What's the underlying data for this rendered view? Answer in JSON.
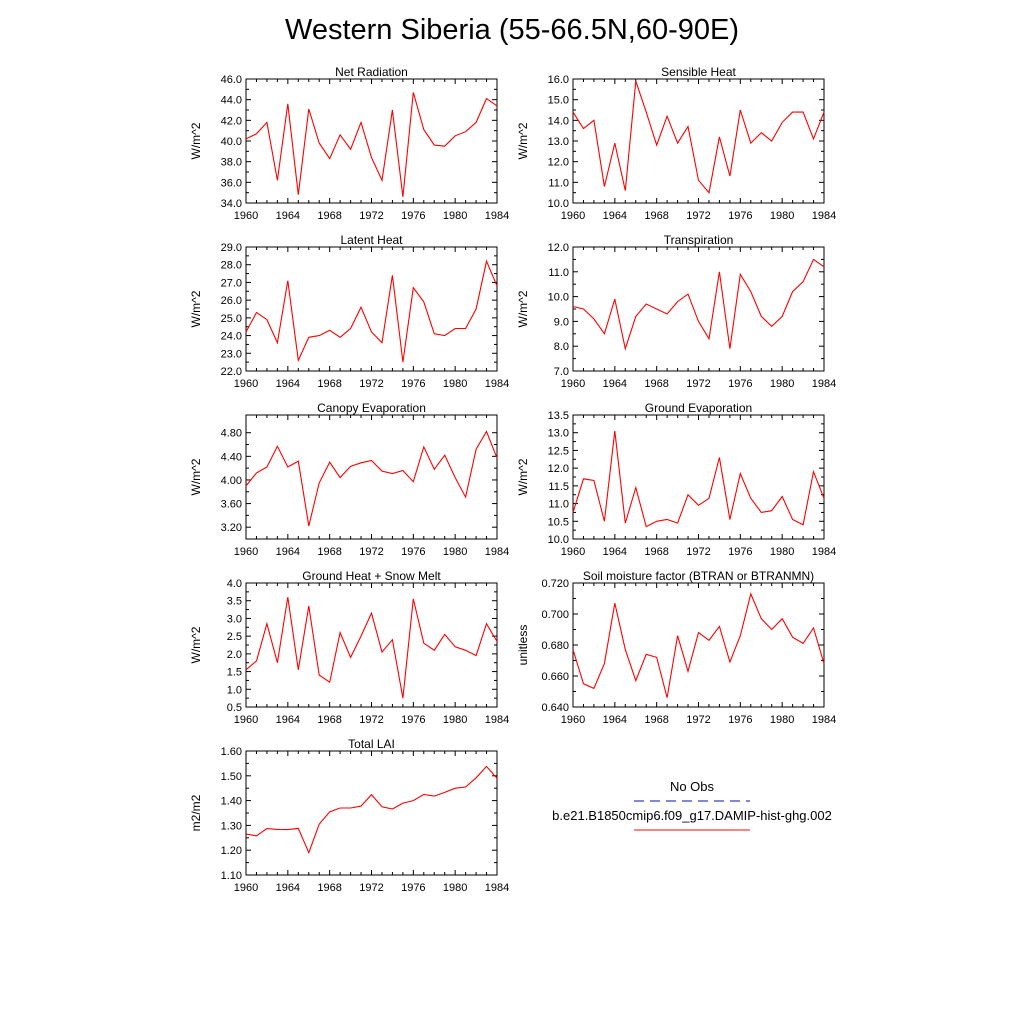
{
  "figure_title": "Western Siberia (55-66.5N,60-90E)",
  "legend": {
    "entries": [
      {
        "name": "No Obs",
        "color": "#3b3bcf",
        "dash": true
      },
      {
        "name": "b.e21.B1850cmip6.f09_g17.DAMIP-hist-ghg.002",
        "color": "#ff3b3b",
        "dash": false
      }
    ]
  },
  "chart_data": [
    {
      "type": "line",
      "title": "Net Radiation",
      "ylabel": "W/m^2",
      "x": [
        1960,
        1961,
        1962,
        1963,
        1964,
        1965,
        1966,
        1967,
        1968,
        1969,
        1970,
        1971,
        1972,
        1973,
        1974,
        1975,
        1976,
        1977,
        1978,
        1979,
        1980,
        1981,
        1982,
        1983,
        1984
      ],
      "y": [
        40.2,
        40.7,
        41.8,
        36.2,
        43.6,
        34.8,
        43.1,
        39.8,
        38.3,
        40.6,
        39.2,
        41.8,
        38.4,
        36.2,
        43.0,
        34.6,
        44.7,
        41.1,
        39.6,
        39.5,
        40.5,
        40.9,
        41.8,
        44.1,
        43.4
      ],
      "xlim": [
        1960,
        1984
      ],
      "ylim": [
        34,
        46
      ],
      "xticks": [
        "1960",
        "1964",
        "1968",
        "1972",
        "1976",
        "1980",
        "1984"
      ],
      "yticks": [
        "34.0",
        "36.0",
        "38.0",
        "40.0",
        "42.0",
        "44.0",
        "46.0"
      ],
      "color": "#ff0000"
    },
    {
      "type": "line",
      "title": "Sensible Heat",
      "ylabel": "W/m^2",
      "x": [
        1960,
        1961,
        1962,
        1963,
        1964,
        1965,
        1966,
        1967,
        1968,
        1969,
        1970,
        1971,
        1972,
        1973,
        1974,
        1975,
        1976,
        1977,
        1978,
        1979,
        1980,
        1981,
        1982,
        1983,
        1984
      ],
      "y": [
        14.4,
        13.6,
        14.0,
        10.8,
        12.9,
        10.6,
        15.9,
        14.4,
        12.8,
        14.2,
        12.9,
        13.7,
        11.1,
        10.5,
        13.2,
        11.3,
        14.5,
        12.9,
        13.4,
        13.0,
        13.9,
        14.4,
        14.4,
        13.1,
        14.4
      ],
      "xlim": [
        1960,
        1984
      ],
      "ylim": [
        10,
        16
      ],
      "xticks": [
        "1960",
        "1964",
        "1968",
        "1972",
        "1976",
        "1980",
        "1984"
      ],
      "yticks": [
        "10.0",
        "11.0",
        "12.0",
        "13.0",
        "14.0",
        "15.0",
        "16.0"
      ],
      "color": "#ff0000"
    },
    {
      "type": "line",
      "title": "Latent Heat",
      "ylabel": "W/m^2",
      "x": [
        1960,
        1961,
        1962,
        1963,
        1964,
        1965,
        1966,
        1967,
        1968,
        1969,
        1970,
        1971,
        1972,
        1973,
        1974,
        1975,
        1976,
        1977,
        1978,
        1979,
        1980,
        1981,
        1982,
        1983,
        1984
      ],
      "y": [
        24.2,
        25.3,
        24.9,
        23.6,
        27.1,
        22.6,
        23.9,
        24.0,
        24.3,
        23.9,
        24.4,
        25.6,
        24.2,
        23.6,
        27.4,
        22.5,
        26.7,
        25.9,
        24.1,
        24.0,
        24.4,
        24.4,
        25.5,
        28.2,
        26.8
      ],
      "xlim": [
        1960,
        1984
      ],
      "ylim": [
        22,
        29
      ],
      "xticks": [
        "1960",
        "1964",
        "1968",
        "1972",
        "1976",
        "1980",
        "1984"
      ],
      "yticks": [
        "22.0",
        "23.0",
        "24.0",
        "25.0",
        "26.0",
        "27.0",
        "28.0",
        "29.0"
      ],
      "color": "#ff0000"
    },
    {
      "type": "line",
      "title": "Transpiration",
      "ylabel": "W/m^2",
      "x": [
        1960,
        1961,
        1962,
        1963,
        1964,
        1965,
        1966,
        1967,
        1968,
        1969,
        1970,
        1971,
        1972,
        1973,
        1974,
        1975,
        1976,
        1977,
        1978,
        1979,
        1980,
        1981,
        1982,
        1983,
        1984
      ],
      "y": [
        9.6,
        9.5,
        9.1,
        8.5,
        9.9,
        7.9,
        9.2,
        9.7,
        9.5,
        9.3,
        9.8,
        10.1,
        9.0,
        8.3,
        11.0,
        7.9,
        10.9,
        10.2,
        9.2,
        8.8,
        9.2,
        10.2,
        10.6,
        11.5,
        11.2
      ],
      "xlim": [
        1960,
        1984
      ],
      "ylim": [
        7,
        12
      ],
      "xticks": [
        "1960",
        "1964",
        "1968",
        "1972",
        "1976",
        "1980",
        "1984"
      ],
      "yticks": [
        "7.0",
        "8.0",
        "9.0",
        "10.0",
        "11.0",
        "12.0"
      ],
      "color": "#ff0000"
    },
    {
      "type": "line",
      "title": "Canopy Evaporation",
      "ylabel": "W/m^2",
      "x": [
        1960,
        1961,
        1962,
        1963,
        1964,
        1965,
        1966,
        1967,
        1968,
        1969,
        1970,
        1971,
        1972,
        1973,
        1974,
        1975,
        1976,
        1977,
        1978,
        1979,
        1980,
        1981,
        1982,
        1983,
        1984
      ],
      "y": [
        3.9,
        4.12,
        4.22,
        4.57,
        4.22,
        4.32,
        3.22,
        3.95,
        4.3,
        4.04,
        4.23,
        4.29,
        4.33,
        4.15,
        4.11,
        4.16,
        3.97,
        4.56,
        4.18,
        4.42,
        4.04,
        3.71,
        4.52,
        4.82,
        4.37
      ],
      "xlim": [
        1960,
        1984
      ],
      "ylim": [
        3.0,
        5.1
      ],
      "xticks": [
        "1960",
        "1964",
        "1968",
        "1972",
        "1976",
        "1980",
        "1984"
      ],
      "yticks": [
        "3.20",
        "3.60",
        "4.00",
        "4.40",
        "4.80"
      ],
      "yticks_values": [
        3.2,
        3.6,
        4.0,
        4.4,
        4.8
      ],
      "color": "#ff0000"
    },
    {
      "type": "line",
      "title": "Ground Evaporation",
      "ylabel": "W/m^2",
      "x": [
        1960,
        1961,
        1962,
        1963,
        1964,
        1965,
        1966,
        1967,
        1968,
        1969,
        1970,
        1971,
        1972,
        1973,
        1974,
        1975,
        1976,
        1977,
        1978,
        1979,
        1980,
        1981,
        1982,
        1983,
        1984
      ],
      "y": [
        10.75,
        11.7,
        11.65,
        10.5,
        13.05,
        10.45,
        11.45,
        10.35,
        10.5,
        10.55,
        10.45,
        11.25,
        10.95,
        11.15,
        12.3,
        10.55,
        11.85,
        11.15,
        10.75,
        10.8,
        11.2,
        10.55,
        10.4,
        11.9,
        11.15
      ],
      "xlim": [
        1960,
        1984
      ],
      "ylim": [
        10,
        13.5
      ],
      "xticks": [
        "1960",
        "1964",
        "1968",
        "1972",
        "1976",
        "1980",
        "1984"
      ],
      "yticks": [
        "10.0",
        "10.5",
        "11.0",
        "11.5",
        "12.0",
        "12.5",
        "13.0",
        "13.5"
      ],
      "color": "#ff0000"
    },
    {
      "type": "line",
      "title": "Ground Heat + Snow Melt",
      "ylabel": "W/m^2",
      "x": [
        1960,
        1961,
        1962,
        1963,
        1964,
        1965,
        1966,
        1967,
        1968,
        1969,
        1970,
        1971,
        1972,
        1973,
        1974,
        1975,
        1976,
        1977,
        1978,
        1979,
        1980,
        1981,
        1982,
        1983,
        1984
      ],
      "y": [
        1.55,
        1.8,
        2.85,
        1.75,
        3.6,
        1.55,
        3.35,
        1.4,
        1.2,
        2.6,
        1.9,
        2.5,
        3.15,
        2.05,
        2.4,
        0.75,
        3.55,
        2.3,
        2.1,
        2.55,
        2.2,
        2.1,
        1.95,
        2.85,
        2.35
      ],
      "xlim": [
        1960,
        1984
      ],
      "ylim": [
        0.5,
        4.0
      ],
      "xticks": [
        "1960",
        "1964",
        "1968",
        "1972",
        "1976",
        "1980",
        "1984"
      ],
      "yticks": [
        "0.5",
        "1.0",
        "1.5",
        "2.0",
        "2.5",
        "3.0",
        "3.5",
        "4.0"
      ],
      "color": "#ff0000"
    },
    {
      "type": "line",
      "title": "Soil moisture factor (BTRAN or BTRANMN)",
      "ylabel": "unitless",
      "x": [
        1960,
        1961,
        1962,
        1963,
        1964,
        1965,
        1966,
        1967,
        1968,
        1969,
        1970,
        1971,
        1972,
        1973,
        1974,
        1975,
        1976,
        1977,
        1978,
        1979,
        1980,
        1981,
        1982,
        1983,
        1984
      ],
      "y": [
        0.677,
        0.655,
        0.652,
        0.668,
        0.707,
        0.677,
        0.657,
        0.674,
        0.672,
        0.646,
        0.686,
        0.663,
        0.688,
        0.683,
        0.692,
        0.669,
        0.686,
        0.713,
        0.697,
        0.69,
        0.697,
        0.685,
        0.681,
        0.691,
        0.668
      ],
      "xlim": [
        1960,
        1984
      ],
      "ylim": [
        0.64,
        0.72
      ],
      "xticks": [
        "1960",
        "1964",
        "1968",
        "1972",
        "1976",
        "1980",
        "1984"
      ],
      "yticks": [
        "0.640",
        "0.660",
        "0.680",
        "0.700",
        "0.720"
      ],
      "color": "#ff0000"
    },
    {
      "type": "line",
      "title": "Total LAI",
      "ylabel": "m2/m2",
      "x": [
        1960,
        1961,
        1962,
        1963,
        1964,
        1965,
        1966,
        1967,
        1968,
        1969,
        1970,
        1971,
        1972,
        1973,
        1974,
        1975,
        1976,
        1977,
        1978,
        1979,
        1980,
        1981,
        1982,
        1983,
        1984
      ],
      "y": [
        1.265,
        1.258,
        1.287,
        1.284,
        1.283,
        1.288,
        1.19,
        1.305,
        1.355,
        1.37,
        1.37,
        1.378,
        1.424,
        1.375,
        1.366,
        1.39,
        1.4,
        1.425,
        1.418,
        1.433,
        1.45,
        1.455,
        1.492,
        1.538,
        1.49
      ],
      "xlim": [
        1960,
        1984
      ],
      "ylim": [
        1.1,
        1.6
      ],
      "xticks": [
        "1960",
        "1964",
        "1968",
        "1972",
        "1976",
        "1980",
        "1984"
      ],
      "yticks": [
        "1.10",
        "1.20",
        "1.30",
        "1.40",
        "1.50",
        "1.60"
      ],
      "color": "#ff0000"
    }
  ]
}
